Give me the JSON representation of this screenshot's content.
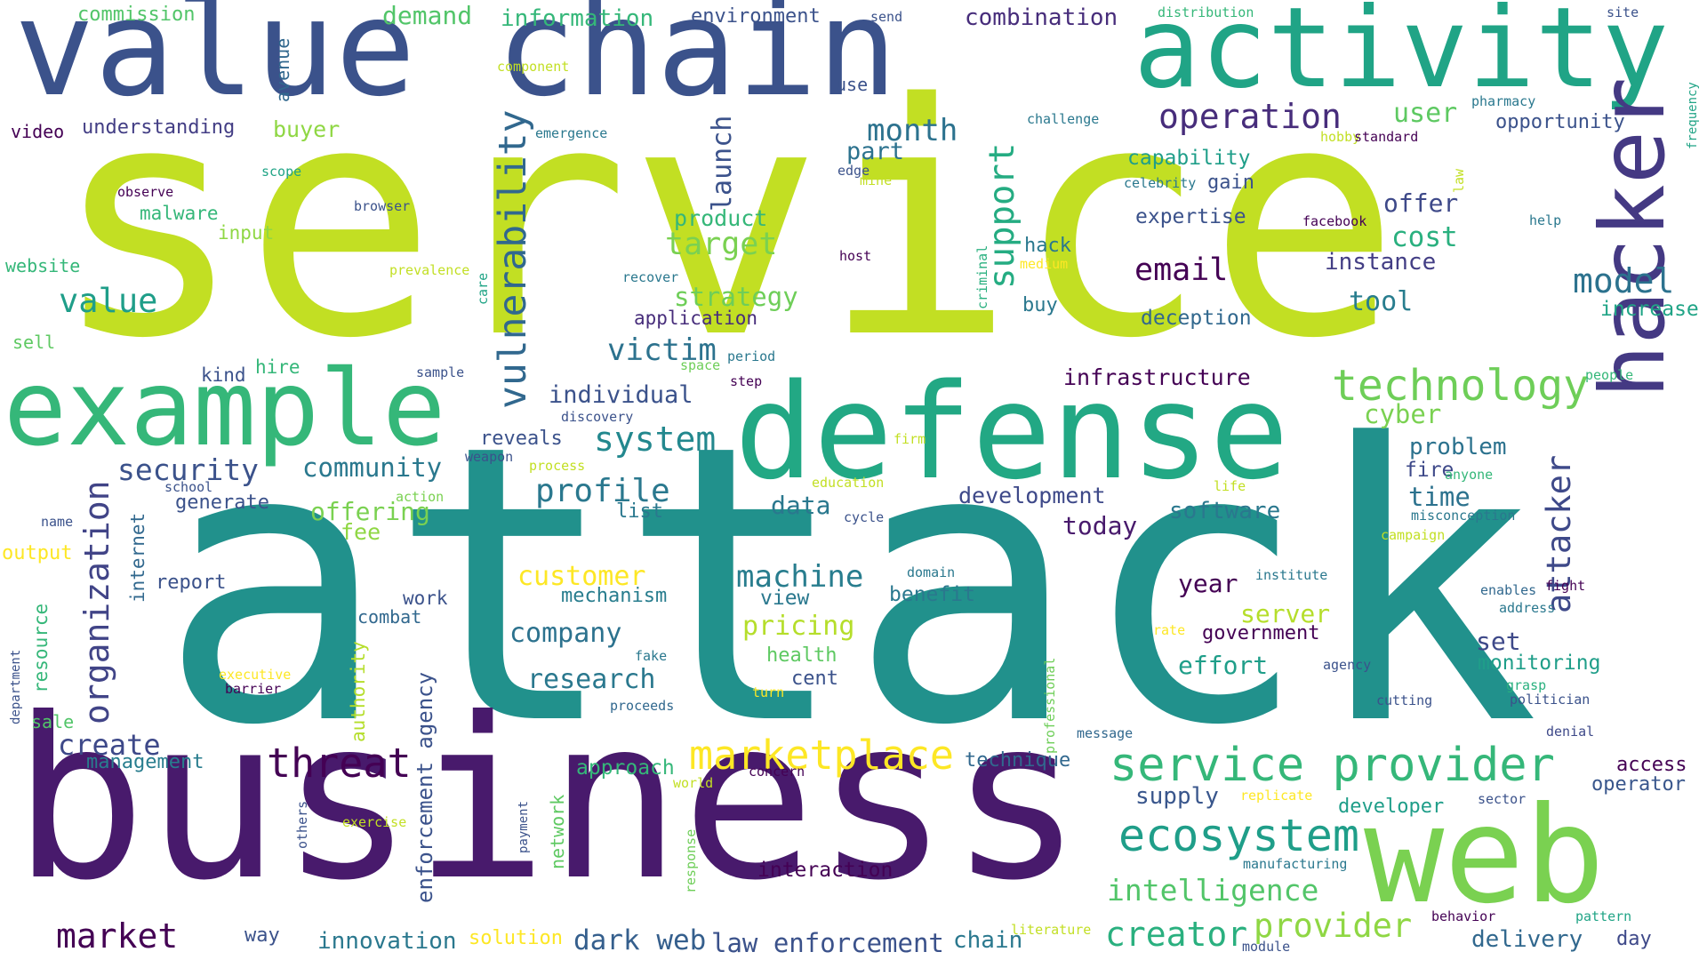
{
  "words": [
    {
      "text": "service",
      "color": "#c2df23"
    },
    {
      "text": "attack",
      "color": "#21918c"
    },
    {
      "text": "business",
      "color": "#481a6c"
    },
    {
      "text": "value chain",
      "color": "#3b528b"
    },
    {
      "text": "activity",
      "color": "#20a486"
    },
    {
      "text": "defense",
      "color": "#22a884"
    },
    {
      "text": "example",
      "color": "#35b779"
    },
    {
      "text": "web",
      "color": "#7ad151"
    },
    {
      "text": "hacker",
      "color": "#443983"
    },
    {
      "text": "service provider",
      "color": "#35b779"
    },
    {
      "text": "marketplace",
      "color": "#fde725"
    },
    {
      "text": "ecosystem",
      "color": "#1f9e89"
    },
    {
      "text": "technology",
      "color": "#6ece58"
    },
    {
      "text": "vulnerability",
      "color": "#31688e"
    },
    {
      "text": "threat",
      "color": "#440154"
    },
    {
      "text": "organization",
      "color": "#414487"
    },
    {
      "text": "creator",
      "color": "#2ab07f"
    },
    {
      "text": "provider",
      "color": "#8fd744"
    },
    {
      "text": "intelligence",
      "color": "#52c569"
    },
    {
      "text": "operation",
      "color": "#472d7b"
    },
    {
      "text": "attacker",
      "color": "#3e4989"
    },
    {
      "text": "market",
      "color": "#440154"
    },
    {
      "text": "dark web",
      "color": "#355f8d"
    },
    {
      "text": "law enforcement",
      "color": "#3b528b"
    },
    {
      "text": "support",
      "color": "#25ac82"
    },
    {
      "text": "value",
      "color": "#1f9e89"
    },
    {
      "text": "model",
      "color": "#2c728e"
    },
    {
      "text": "profile",
      "color": "#2a788e"
    },
    {
      "text": "system",
      "color": "#23888e"
    },
    {
      "text": "security",
      "color": "#3b528b"
    },
    {
      "text": "month",
      "color": "#2c728e"
    },
    {
      "text": "target",
      "color": "#7ad151"
    },
    {
      "text": "victim",
      "color": "#2c728e"
    },
    {
      "text": "email",
      "color": "#440154"
    },
    {
      "text": "machine",
      "color": "#287d8e"
    },
    {
      "text": "create",
      "color": "#3e4989"
    },
    {
      "text": "customer",
      "color": "#fde725"
    },
    {
      "text": "pricing",
      "color": "#b5de2b"
    },
    {
      "text": "research",
      "color": "#2a788e"
    },
    {
      "text": "company",
      "color": "#2c728e"
    },
    {
      "text": "cost",
      "color": "#2ab07f"
    },
    {
      "text": "user",
      "color": "#5ec962"
    },
    {
      "text": "offer",
      "color": "#3e4989"
    },
    {
      "text": "tool",
      "color": "#287d8e"
    },
    {
      "text": "strategy",
      "color": "#6ece58"
    },
    {
      "text": "instance",
      "color": "#433e85"
    },
    {
      "text": "community",
      "color": "#2a788e"
    },
    {
      "text": "cyber",
      "color": "#7ad151"
    },
    {
      "text": "infrastructure",
      "color": "#440154"
    },
    {
      "text": "individual",
      "color": "#3b528b"
    },
    {
      "text": "development",
      "color": "#3e4989"
    },
    {
      "text": "software",
      "color": "#2a788e"
    },
    {
      "text": "time",
      "color": "#2c728e"
    },
    {
      "text": "problem",
      "color": "#2c728e"
    },
    {
      "text": "today",
      "color": "#481a6c"
    },
    {
      "text": "data",
      "color": "#2a788e"
    },
    {
      "text": "offering",
      "color": "#7ad151"
    },
    {
      "text": "launch",
      "color": "#3b528b"
    },
    {
      "text": "product",
      "color": "#35b779"
    },
    {
      "text": "part",
      "color": "#2c728e"
    },
    {
      "text": "server",
      "color": "#b5de2b"
    },
    {
      "text": "year",
      "color": "#440154"
    },
    {
      "text": "effort",
      "color": "#1f9e89"
    },
    {
      "text": "government",
      "color": "#440154"
    },
    {
      "text": "set",
      "color": "#3e4989"
    },
    {
      "text": "monitoring",
      "color": "#1f9e89"
    },
    {
      "text": "demand",
      "color": "#52c569"
    },
    {
      "text": "information",
      "color": "#35b779"
    },
    {
      "text": "combination",
      "color": "#472d7b"
    },
    {
      "text": "environment",
      "color": "#3b528b"
    },
    {
      "text": "capability",
      "color": "#1f9e89"
    },
    {
      "text": "expertise",
      "color": "#3b528b"
    },
    {
      "text": "deception",
      "color": "#31688e"
    },
    {
      "text": "increase",
      "color": "#20a486"
    },
    {
      "text": "fire",
      "color": "#3e4989"
    },
    {
      "text": "access",
      "color": "#440154"
    },
    {
      "text": "operator",
      "color": "#39568c"
    },
    {
      "text": "enforcement agency",
      "color": "#3b528b"
    },
    {
      "text": "delivery",
      "color": "#31688e"
    },
    {
      "text": "innovation",
      "color": "#2a788e"
    },
    {
      "text": "interaction",
      "color": "#440154"
    },
    {
      "text": "chain",
      "color": "#2a788e"
    },
    {
      "text": "developer",
      "color": "#1f9e89"
    },
    {
      "text": "supply",
      "color": "#39568c"
    },
    {
      "text": "approach",
      "color": "#35b779"
    },
    {
      "text": "technique",
      "color": "#31688e"
    },
    {
      "text": "management",
      "color": "#287d8e"
    },
    {
      "text": "mechanism",
      "color": "#287d8e"
    },
    {
      "text": "view",
      "color": "#2a788e"
    },
    {
      "text": "benefit",
      "color": "#2a788e"
    },
    {
      "text": "health",
      "color": "#5ec962"
    },
    {
      "text": "cent",
      "color": "#3b528b"
    },
    {
      "text": "report",
      "color": "#3b528b"
    },
    {
      "text": "work",
      "color": "#3b528b"
    },
    {
      "text": "combat",
      "color": "#31688e"
    },
    {
      "text": "fee",
      "color": "#8fd744"
    },
    {
      "text": "generate",
      "color": "#3b528b"
    },
    {
      "text": "internet",
      "color": "#31688e"
    },
    {
      "text": "reveals",
      "color": "#3b528b"
    },
    {
      "text": "list",
      "color": "#2a788e"
    },
    {
      "text": "buyer",
      "color": "#8fd744"
    },
    {
      "text": "understanding",
      "color": "#433e85"
    },
    {
      "text": "video",
      "color": "#440154"
    },
    {
      "text": "commission",
      "color": "#52c569"
    },
    {
      "text": "avenue",
      "color": "#31688e"
    },
    {
      "text": "malware",
      "color": "#35b779"
    },
    {
      "text": "input",
      "color": "#8fd744"
    },
    {
      "text": "website",
      "color": "#35b779"
    },
    {
      "text": "sell",
      "color": "#5ec962"
    },
    {
      "text": "kind",
      "color": "#3b528b"
    },
    {
      "text": "hire",
      "color": "#35b779"
    },
    {
      "text": "output",
      "color": "#fde725"
    },
    {
      "text": "resource",
      "color": "#35b779"
    },
    {
      "text": "sale",
      "color": "#52c569"
    },
    {
      "text": "department",
      "color": "#3b528b"
    },
    {
      "text": "authority",
      "color": "#b5de2b"
    },
    {
      "text": "network",
      "color": "#5ec962"
    },
    {
      "text": "solution",
      "color": "#fde725"
    },
    {
      "text": "way",
      "color": "#3b528b"
    },
    {
      "text": "hack",
      "color": "#2a788e"
    },
    {
      "text": "buy",
      "color": "#2a788e"
    },
    {
      "text": "gain",
      "color": "#3b528b"
    },
    {
      "text": "application",
      "color": "#472d7b"
    },
    {
      "text": "others",
      "color": "#3b528b"
    },
    {
      "text": "payment",
      "color": "#3b528b"
    },
    {
      "text": "response",
      "color": "#6ece58"
    },
    {
      "text": "exercise",
      "color": "#c2df23"
    },
    {
      "text": "world",
      "color": "#c2df23"
    },
    {
      "text": "concern",
      "color": "#440154"
    },
    {
      "text": "replicate",
      "color": "#fde725"
    },
    {
      "text": "manufacturing",
      "color": "#2a788e"
    },
    {
      "text": "sector",
      "color": "#3b528b"
    },
    {
      "text": "behavior",
      "color": "#440154"
    },
    {
      "text": "module",
      "color": "#3b528b"
    },
    {
      "text": "literature",
      "color": "#c2df23"
    },
    {
      "text": "pattern",
      "color": "#20a486"
    },
    {
      "text": "day",
      "color": "#3e4989"
    },
    {
      "text": "message",
      "color": "#31688e"
    },
    {
      "text": "professional",
      "color": "#6ece58"
    },
    {
      "text": "turn",
      "color": "#fde725"
    },
    {
      "text": "proceeds",
      "color": "#31688e"
    },
    {
      "text": "fake",
      "color": "#2a788e"
    },
    {
      "text": "executive",
      "color": "#fde725"
    },
    {
      "text": "barrier",
      "color": "#440154"
    },
    {
      "text": "agency",
      "color": "#3b528b"
    },
    {
      "text": "cutting",
      "color": "#3b528b"
    },
    {
      "text": "grasp",
      "color": "#2ab07f"
    },
    {
      "text": "politician",
      "color": "#3b528b"
    },
    {
      "text": "denial",
      "color": "#3e4989"
    },
    {
      "text": "address",
      "color": "#2a788e"
    },
    {
      "text": "enables",
      "color": "#31688e"
    },
    {
      "text": "fight",
      "color": "#440154"
    },
    {
      "text": "institute",
      "color": "#2a788e"
    },
    {
      "text": "rate",
      "color": "#fde725"
    },
    {
      "text": "domain",
      "color": "#2a788e"
    },
    {
      "text": "campaign",
      "color": "#c2df23"
    },
    {
      "text": "misconception",
      "color": "#2a788e"
    },
    {
      "text": "cycle",
      "color": "#3b528b"
    },
    {
      "text": "life",
      "color": "#c2df23"
    },
    {
      "text": "education",
      "color": "#c2df23"
    },
    {
      "text": "anyone",
      "color": "#35b779"
    },
    {
      "text": "people",
      "color": "#35b779"
    },
    {
      "text": "step",
      "color": "#440154"
    },
    {
      "text": "period",
      "color": "#2a788e"
    },
    {
      "text": "space",
      "color": "#6ece58"
    },
    {
      "text": "sample",
      "color": "#3b528b"
    },
    {
      "text": "discovery",
      "color": "#3b528b"
    },
    {
      "text": "weapon",
      "color": "#3b528b"
    },
    {
      "text": "process",
      "color": "#c2df23"
    },
    {
      "text": "school",
      "color": "#3b528b"
    },
    {
      "text": "action",
      "color": "#7ad151"
    },
    {
      "text": "name",
      "color": "#3b528b"
    },
    {
      "text": "firm",
      "color": "#c2df23"
    },
    {
      "text": "care",
      "color": "#20a486"
    },
    {
      "text": "prevalence",
      "color": "#c2df23"
    },
    {
      "text": "recover",
      "color": "#2a788e"
    },
    {
      "text": "host",
      "color": "#440154"
    },
    {
      "text": "medium",
      "color": "#fde725"
    },
    {
      "text": "criminal",
      "color": "#2ab07f"
    },
    {
      "text": "browser",
      "color": "#3b528b"
    },
    {
      "text": "observe",
      "color": "#440154"
    },
    {
      "text": "scope",
      "color": "#20a486"
    },
    {
      "text": "emergence",
      "color": "#2a788e"
    },
    {
      "text": "component",
      "color": "#c2df23"
    },
    {
      "text": "use",
      "color": "#3b528b"
    },
    {
      "text": "send",
      "color": "#3b528b"
    },
    {
      "text": "edge",
      "color": "#3b528b"
    },
    {
      "text": "mine",
      "color": "#c2df23"
    },
    {
      "text": "challenge",
      "color": "#2a788e"
    },
    {
      "text": "distribution",
      "color": "#35b779"
    },
    {
      "text": "celebrity",
      "color": "#2a788e"
    },
    {
      "text": "law",
      "color": "#c2df23"
    },
    {
      "text": "hobby",
      "color": "#c2df23"
    },
    {
      "text": "standard",
      "color": "#440154"
    },
    {
      "text": "facebook",
      "color": "#440154"
    },
    {
      "text": "help",
      "color": "#2a788e"
    },
    {
      "text": "pharmacy",
      "color": "#2a788e"
    },
    {
      "text": "opportunity",
      "color": "#3b528b"
    },
    {
      "text": "site",
      "color": "#3b528b"
    },
    {
      "text": "frequency",
      "color": "#20a486"
    }
  ]
}
